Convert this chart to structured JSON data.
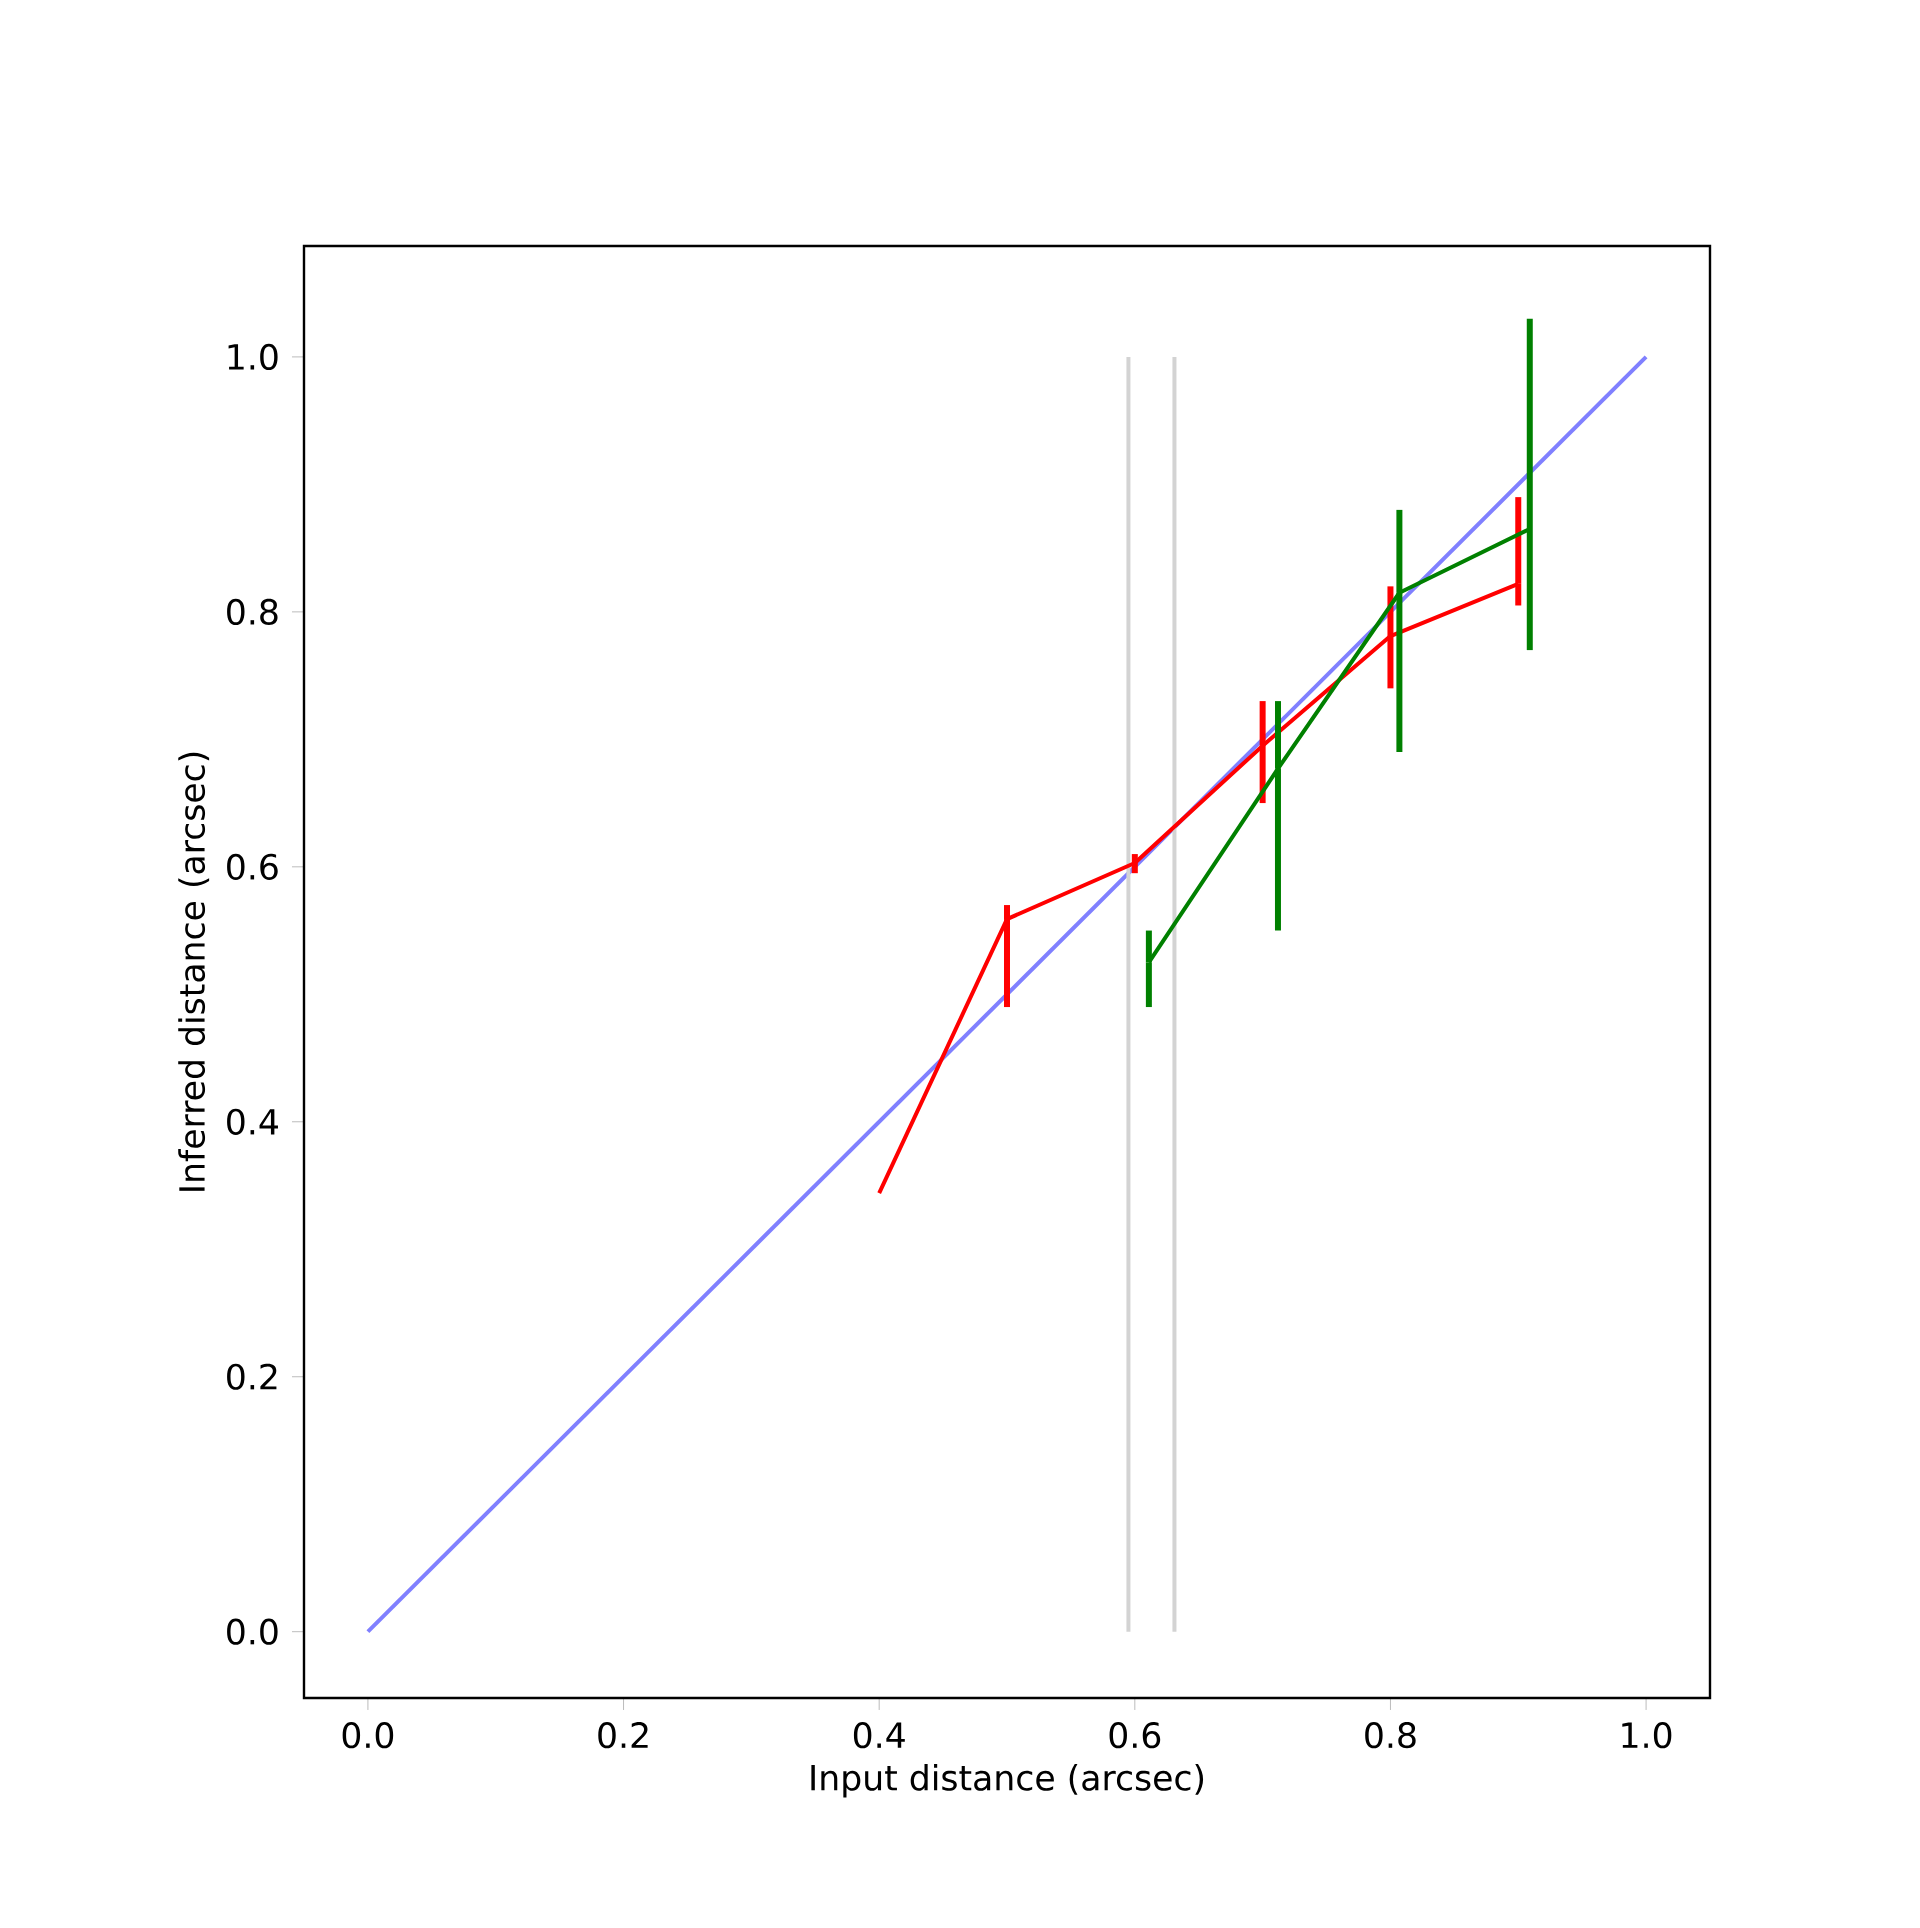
{
  "chart_data": {
    "type": "line",
    "xlabel": "Input distance (arcsec)",
    "ylabel": "Inferred distance (arcsec)",
    "xlim": [
      -0.05,
      1.05
    ],
    "ylim": [
      -0.052,
      1.087
    ],
    "xticks": [
      {
        "value": 0,
        "label": "0.0"
      },
      0.2,
      0.4,
      0.6,
      0.8,
      {
        "value": 1,
        "label": "1.0"
      }
    ],
    "yticks": [
      {
        "value": 0,
        "label": "0.0"
      },
      0.2,
      0.4,
      0.6,
      0.8,
      {
        "value": 1,
        "label": "1.0"
      }
    ],
    "grid": false,
    "marker": "none",
    "line_style": "solid",
    "series": [
      {
        "color": "#8080ff",
        "x": [
          0,
          1
        ],
        "values": [
          0,
          1
        ]
      },
      {
        "color": "#d3d3d3",
        "x": [
          0.595,
          0.595
        ],
        "values": [
          0,
          1
        ]
      },
      {
        "color": "#d3d3d3",
        "x": [
          0.631,
          0.631
        ],
        "values": [
          0,
          1
        ]
      },
      {
        "color": "#ff0000",
        "x": [
          0.4,
          0.5,
          0.6,
          0.7,
          0.8,
          0.9
        ],
        "values": [
          0.344,
          0.559,
          0.603,
          0.695,
          0.781,
          0.822
        ],
        "errors": [
          null,
          [
            0.49,
            0.57
          ],
          [
            0.595,
            0.61
          ],
          [
            0.65,
            0.73
          ],
          [
            0.74,
            0.82
          ],
          [
            0.805,
            0.89
          ]
        ]
      },
      {
        "color": "#008000",
        "x": [
          0.611,
          0.712,
          0.807,
          0.909
        ],
        "values": [
          0.525,
          0.677,
          0.815,
          0.865
        ],
        "errors": [
          [
            0.49,
            0.55
          ],
          [
            0.55,
            0.73
          ],
          [
            0.69,
            0.88
          ],
          [
            0.77,
            1.03
          ]
        ]
      }
    ]
  }
}
